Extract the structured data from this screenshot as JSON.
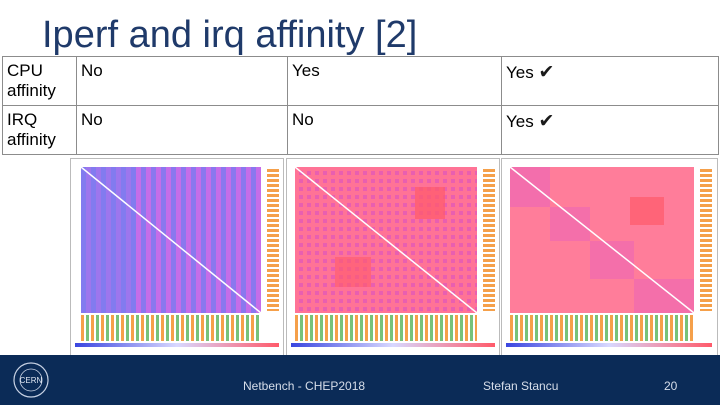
{
  "slide": {
    "title": "Iperf and irq affinity [2]"
  },
  "table": {
    "rows": [
      {
        "header": "CPU affinity",
        "values": [
          "No",
          "Yes",
          "Yes"
        ],
        "check": [
          false,
          false,
          true
        ]
      },
      {
        "header": "IRQ affinity",
        "values": [
          "No",
          "No",
          "Yes"
        ],
        "check": [
          false,
          false,
          true
        ]
      }
    ],
    "check_glyph": "✔"
  },
  "footer": {
    "event": "Netbench - CHEP2018",
    "author": "Stefan Stancu",
    "page": "20",
    "logo_text": "CERN"
  },
  "colors": {
    "footer_bg": "#0b2b57",
    "title": "#1f3a6a",
    "heat_magenta": "#d86be0",
    "heat_blue": "#6f7fe8",
    "heat_pink": "#ff6f8a"
  }
}
